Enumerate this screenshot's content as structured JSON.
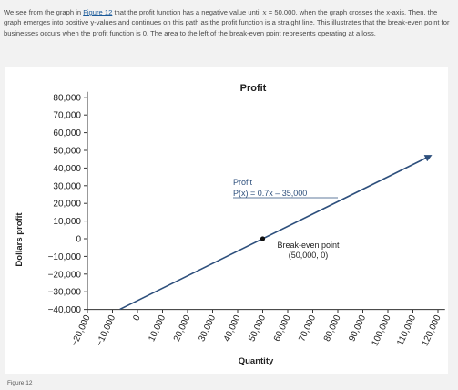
{
  "paragraph": {
    "part1": "We see from the graph in ",
    "link": "Figure 12",
    "part2": " that the profit function has a negative value until ",
    "math_x": "x",
    "math_eq": " = 50,000",
    "part3": ", when the graph crosses the x-axis. Then, the graph emerges into positive y-values and continues on this path as the profit function is a straight line. This illustrates that the break-even point for businesses occurs when the profit function is 0. The area to the left of the break-even point represents operating at a loss."
  },
  "caption": "Figure 12",
  "chart_data": {
    "type": "line",
    "title": "Profit",
    "xlabel": "Quantity",
    "ylabel": "Dollars profit",
    "xlim": [
      -25000,
      125000
    ],
    "ylim": [
      -40000,
      80000
    ],
    "x_ticks": [
      -20000,
      -10000,
      0,
      10000,
      20000,
      30000,
      40000,
      50000,
      60000,
      70000,
      80000,
      90000,
      100000,
      110000,
      120000
    ],
    "x_tick_labels": [
      "−20,000",
      "−10,000",
      "0",
      "10,000",
      "20,000",
      "30,000",
      "40,000",
      "50,000",
      "60,000",
      "70,000",
      "80,000",
      "90,000",
      "100,000",
      "110,000",
      "120,000"
    ],
    "y_ticks": [
      80000,
      70000,
      60000,
      50000,
      40000,
      30000,
      20000,
      10000,
      0,
      -10000,
      -20000,
      -30000,
      -40000
    ],
    "y_tick_labels": [
      "80,000",
      "70,000",
      "60,000",
      "50,000",
      "40,000",
      "30,000",
      "20,000",
      "10,000",
      "0",
      "−10,000",
      "−20,000",
      "−30,000",
      "−40,000"
    ],
    "grid": false,
    "series": [
      {
        "name": "Profit",
        "formula": "P(x) = 0.7x – 35,000",
        "slope": 0.7,
        "intercept": -35000,
        "x_start": -7000,
        "x_end": 117000,
        "color": "#2d4f7c"
      }
    ],
    "series_label": {
      "line1": "Profit",
      "line2": "P(x) = 0.7x – 35,000"
    },
    "point": {
      "x": 50000,
      "y": 0,
      "label1": "Break-even point",
      "label2": "(50,000, 0)"
    }
  }
}
